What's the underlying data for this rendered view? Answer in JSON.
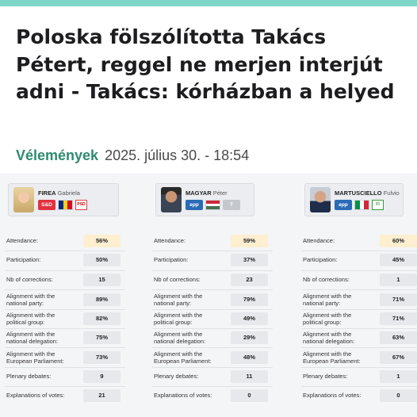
{
  "headline": "Poloska fölszólította Takács Pétert, reggel ne merjen interjút adni - Takács: kórházban a helyed",
  "category": "Vélemények",
  "date": "2025. július 30. - 18:54",
  "row_labels": [
    "Attendance:",
    "Participation:",
    "Nb of corrections:",
    "Alignment with the national party:",
    "Alignment with the political group:",
    "Alignment with the national delegation:",
    "Alignment with the European Parliament:",
    "Plenary debates:",
    "Explanations of votes:"
  ],
  "meps": [
    {
      "last_name": "FIREA",
      "first_name": "Gabriela",
      "group_badge": "S&D",
      "party_logo": "PSD",
      "flag_colors": [
        "#002b7f",
        "#fcd116",
        "#ce1126"
      ],
      "values": [
        "56%",
        "50%",
        "15",
        "89%",
        "82%",
        "75%",
        "73%",
        "9",
        "21"
      ]
    },
    {
      "last_name": "MAGYAR",
      "first_name": "Péter",
      "group_badge": "epp",
      "party_logo": "T",
      "flag_colors": [
        "#ce2939",
        "#ffffff",
        "#477050"
      ],
      "values": [
        "59%",
        "37%",
        "23",
        "79%",
        "49%",
        "29%",
        "48%",
        "11",
        "0"
      ]
    },
    {
      "last_name": "MARTUSCIELLO",
      "first_name": "Fulvio",
      "group_badge": "epp",
      "party_logo": "FI",
      "flag_colors": [
        "#009246",
        "#ffffff",
        "#ce2b37"
      ],
      "values": [
        "60%",
        "45%",
        "1",
        "71%",
        "71%",
        "63%",
        "67%",
        "1",
        "0"
      ]
    }
  ],
  "colors": {
    "accent_bar": "#7fd6c8",
    "category": "#2e8b6e",
    "attendance_highlight": "#fdefd0"
  }
}
